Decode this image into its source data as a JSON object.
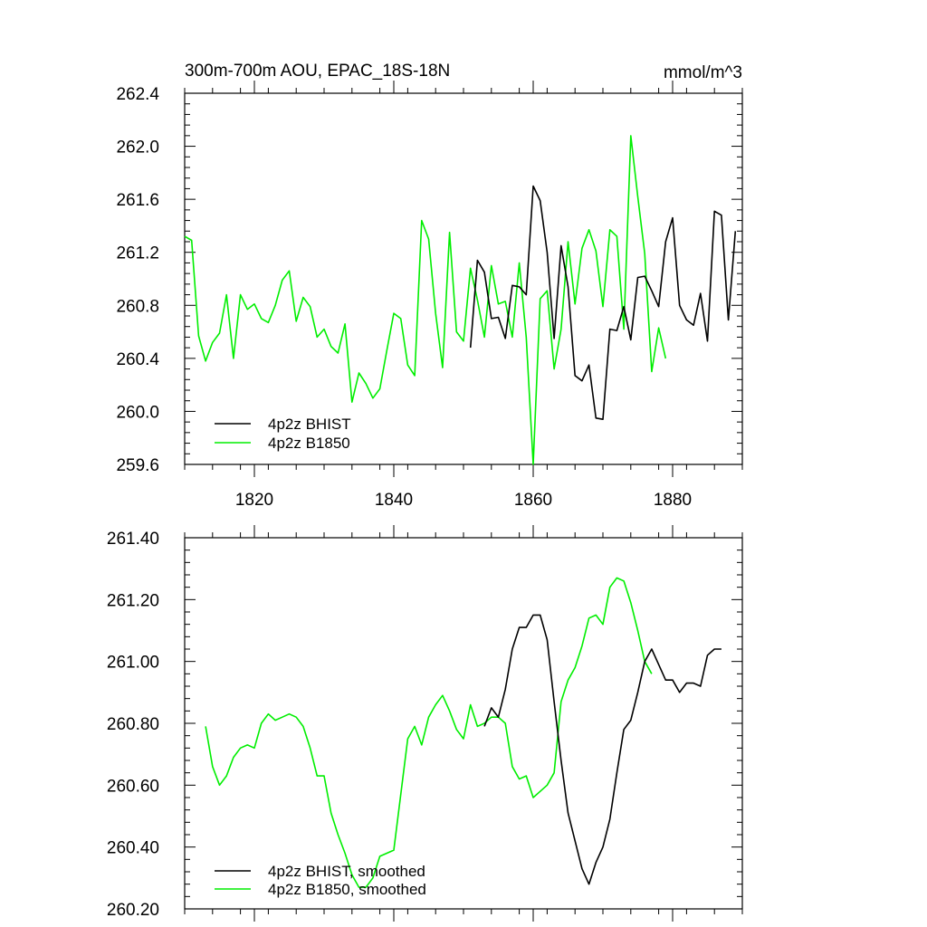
{
  "chart_data": [
    {
      "type": "line",
      "title": "300m-700m AOU, EPAC_18S-18N",
      "units": "mmol/m^3",
      "xlim": [
        1810,
        1890
      ],
      "ylim": [
        259.6,
        262.4
      ],
      "x_ticks": [
        {
          "value": 1820,
          "label": "1820"
        },
        {
          "value": 1840,
          "label": "1840"
        },
        {
          "value": 1860,
          "label": "1860"
        },
        {
          "value": 1880,
          "label": "1880"
        }
      ],
      "y_ticks": [
        {
          "value": 259.6,
          "label": "259.6"
        },
        {
          "value": 260.0,
          "label": "260.0"
        },
        {
          "value": 260.4,
          "label": "260.4"
        },
        {
          "value": 260.8,
          "label": "260.8"
        },
        {
          "value": 261.2,
          "label": "261.2"
        },
        {
          "value": 261.6,
          "label": "261.6"
        },
        {
          "value": 262.0,
          "label": "262.0"
        },
        {
          "value": 262.4,
          "label": "262.4"
        }
      ],
      "series": [
        {
          "name": "4p2z BHIST",
          "color": "#000000",
          "x": [
            1851,
            1852,
            1853,
            1854,
            1855,
            1856,
            1857,
            1858,
            1859,
            1860,
            1861,
            1862,
            1863,
            1864,
            1865,
            1866,
            1867,
            1868,
            1869,
            1870,
            1871,
            1872,
            1873,
            1874,
            1875,
            1876,
            1877,
            1878,
            1879,
            1880,
            1881,
            1882,
            1883,
            1884,
            1885,
            1886,
            1887,
            1888,
            1889
          ],
          "values": [
            260.48,
            261.14,
            261.05,
            260.7,
            260.71,
            260.55,
            260.95,
            260.94,
            260.88,
            261.7,
            261.59,
            261.2,
            260.55,
            261.25,
            260.94,
            260.27,
            260.23,
            260.35,
            259.95,
            259.94,
            260.62,
            260.61,
            260.79,
            260.54,
            261.01,
            261.02,
            260.91,
            260.79,
            261.28,
            261.46,
            260.8,
            260.69,
            260.65,
            260.89,
            260.53,
            261.51,
            261.48,
            260.69,
            261.36
          ]
        },
        {
          "name": "4p2z B1850",
          "color": "#00ee00",
          "x": [
            1810,
            1811,
            1812,
            1813,
            1814,
            1815,
            1816,
            1817,
            1818,
            1819,
            1820,
            1821,
            1822,
            1823,
            1824,
            1825,
            1826,
            1827,
            1828,
            1829,
            1830,
            1831,
            1832,
            1833,
            1834,
            1835,
            1836,
            1837,
            1838,
            1839,
            1840,
            1841,
            1842,
            1843,
            1844,
            1845,
            1846,
            1847,
            1848,
            1849,
            1850,
            1851,
            1852,
            1853,
            1854,
            1855,
            1856,
            1857,
            1858,
            1859,
            1860,
            1861,
            1862,
            1863,
            1864,
            1865,
            1866,
            1867,
            1868,
            1869,
            1870,
            1871,
            1872,
            1873,
            1874,
            1875,
            1876,
            1877,
            1878,
            1879
          ],
          "values": [
            261.32,
            261.29,
            260.57,
            260.38,
            260.52,
            260.59,
            260.88,
            260.4,
            260.88,
            260.77,
            260.81,
            260.7,
            260.67,
            260.8,
            260.99,
            261.06,
            260.68,
            260.86,
            260.79,
            260.56,
            260.62,
            260.49,
            260.44,
            260.66,
            260.07,
            260.29,
            260.21,
            260.1,
            260.17,
            260.46,
            260.74,
            260.7,
            260.35,
            260.27,
            261.44,
            261.3,
            260.74,
            260.33,
            261.35,
            260.6,
            260.53,
            261.08,
            260.84,
            260.56,
            261.1,
            260.81,
            260.83,
            260.56,
            261.12,
            260.56,
            259.6,
            260.85,
            260.91,
            260.32,
            260.62,
            261.28,
            260.81,
            261.23,
            261.37,
            261.21,
            260.79,
            261.37,
            261.32,
            260.62,
            262.08,
            261.62,
            261.19,
            260.3,
            260.63,
            260.4
          ]
        }
      ],
      "legend": "bottom-left"
    },
    {
      "type": "line",
      "title": "",
      "units": "",
      "xlim": [
        1810,
        1890
      ],
      "ylim": [
        260.2,
        261.4
      ],
      "x_ticks": [
        {
          "value": 1820,
          "label": ""
        },
        {
          "value": 1840,
          "label": ""
        },
        {
          "value": 1860,
          "label": ""
        },
        {
          "value": 1880,
          "label": ""
        }
      ],
      "y_ticks": [
        {
          "value": 260.2,
          "label": "260.20"
        },
        {
          "value": 260.4,
          "label": "260.40"
        },
        {
          "value": 260.6,
          "label": "260.60"
        },
        {
          "value": 260.8,
          "label": "260.80"
        },
        {
          "value": 261.0,
          "label": "261.00"
        },
        {
          "value": 261.2,
          "label": "261.20"
        },
        {
          "value": 261.4,
          "label": "261.40"
        }
      ],
      "series": [
        {
          "name": "4p2z BHIST, smoothed",
          "color": "#000000",
          "x": [
            1853,
            1854,
            1855,
            1856,
            1857,
            1858,
            1859,
            1860,
            1861,
            1862,
            1863,
            1864,
            1865,
            1866,
            1867,
            1868,
            1869,
            1870,
            1871,
            1872,
            1873,
            1874,
            1875,
            1876,
            1877,
            1878,
            1879,
            1880,
            1881,
            1882,
            1883,
            1884,
            1885,
            1886,
            1887
          ],
          "values": [
            260.79,
            260.85,
            260.82,
            260.91,
            261.04,
            261.11,
            261.11,
            261.15,
            261.15,
            261.07,
            260.87,
            260.68,
            260.51,
            260.42,
            260.33,
            260.28,
            260.35,
            260.4,
            260.49,
            260.64,
            260.78,
            260.81,
            260.9,
            261.0,
            261.04,
            260.99,
            260.94,
            260.94,
            260.9,
            260.93,
            260.93,
            260.92,
            261.02,
            261.04,
            261.04
          ]
        },
        {
          "name": "4p2z B1850, smoothed",
          "color": "#00ee00",
          "x": [
            1813,
            1814,
            1815,
            1816,
            1817,
            1818,
            1819,
            1820,
            1821,
            1822,
            1823,
            1824,
            1825,
            1826,
            1827,
            1828,
            1829,
            1830,
            1831,
            1832,
            1833,
            1834,
            1835,
            1836,
            1837,
            1838,
            1839,
            1840,
            1841,
            1842,
            1843,
            1844,
            1845,
            1846,
            1847,
            1848,
            1849,
            1850,
            1851,
            1852,
            1853,
            1854,
            1855,
            1856,
            1857,
            1858,
            1859,
            1860,
            1861,
            1862,
            1863,
            1864,
            1865,
            1866,
            1867,
            1868,
            1869,
            1870,
            1871,
            1872,
            1873,
            1874,
            1875,
            1876,
            1877
          ],
          "values": [
            260.79,
            260.66,
            260.6,
            260.63,
            260.69,
            260.72,
            260.73,
            260.72,
            260.8,
            260.83,
            260.81,
            260.82,
            260.83,
            260.82,
            260.79,
            260.72,
            260.63,
            260.63,
            260.51,
            260.44,
            260.38,
            260.31,
            260.27,
            260.27,
            260.3,
            260.37,
            260.38,
            260.39,
            260.57,
            260.75,
            260.79,
            260.73,
            260.82,
            260.86,
            260.89,
            260.84,
            260.78,
            260.75,
            260.86,
            260.79,
            260.8,
            260.82,
            260.82,
            260.8,
            260.66,
            260.62,
            260.63,
            260.56,
            260.58,
            260.6,
            260.64,
            260.87,
            260.94,
            260.98,
            261.05,
            261.14,
            261.15,
            261.12,
            261.24,
            261.27,
            261.26,
            261.19,
            261.1,
            261.0,
            260.96
          ]
        }
      ],
      "legend": "bottom-left"
    }
  ]
}
